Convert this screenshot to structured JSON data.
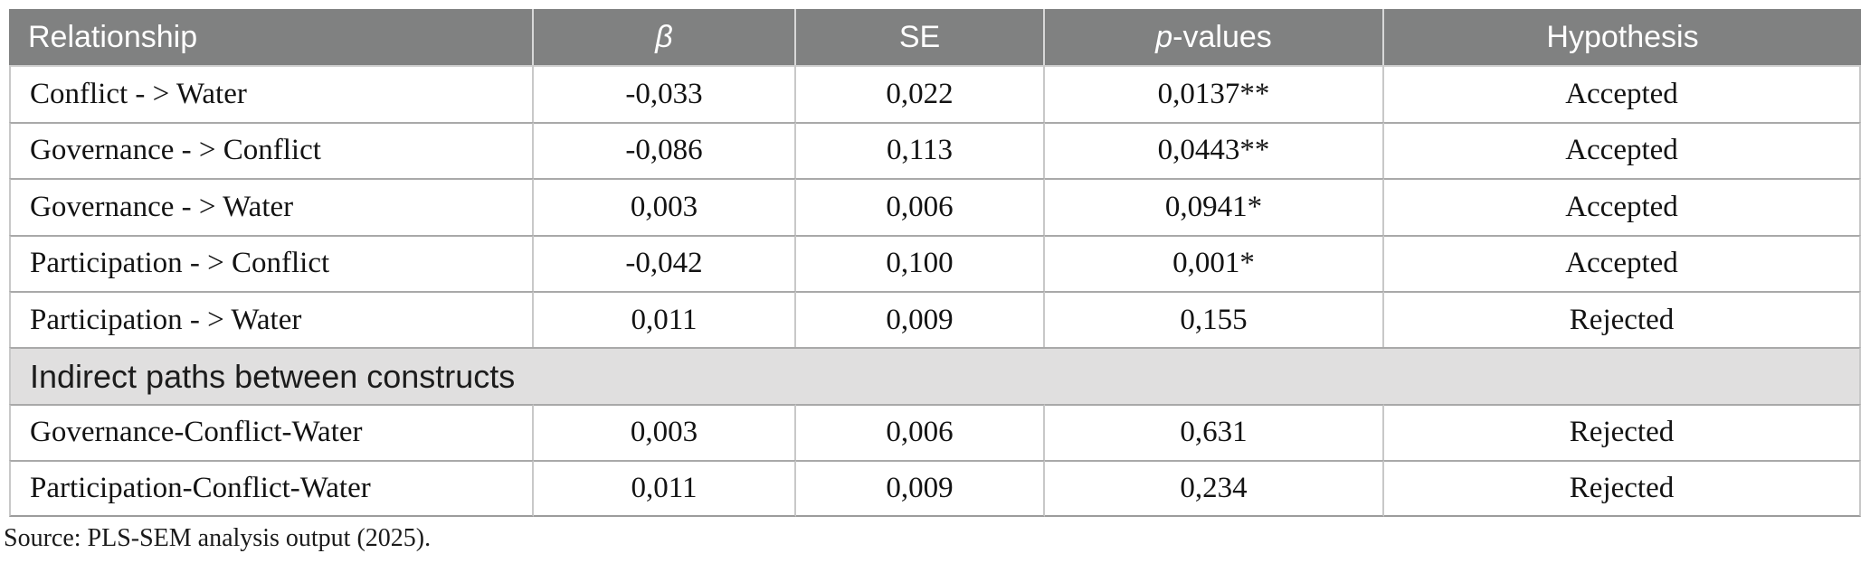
{
  "colors": {
    "header_bg": "#808181",
    "header_text": "#ffffff",
    "header_divider": "#d8d8d8",
    "section_bg": "#e0dfdf",
    "section_text": "#1c1c1c",
    "body_text": "#131313",
    "border_h": "#a9a9a9",
    "border_v": "#c8c8c8",
    "border_b": "#9b9b9b",
    "under_header": "#cfcfcf"
  },
  "table": {
    "columns": {
      "relationship": "Relationship",
      "beta": "β",
      "se": "SE",
      "p": "p-values",
      "hypothesis": "Hypothesis"
    },
    "direct_rows": [
      {
        "relationship": "Conflict - > Water",
        "beta": "-0,033",
        "se": "0,022",
        "p": "0,0137**",
        "hypothesis": "Accepted"
      },
      {
        "relationship": "Governance - > Conflict",
        "beta": "-0,086",
        "se": "0,113",
        "p": "0,0443**",
        "hypothesis": "Accepted"
      },
      {
        "relationship": "Governance - > Water",
        "beta": "0,003",
        "se": "0,006",
        "p": "0,0941*",
        "hypothesis": "Accepted"
      },
      {
        "relationship": "Participation - > Conflict",
        "beta": "-0,042",
        "se": "0,100",
        "p": "0,001*",
        "hypothesis": "Accepted"
      },
      {
        "relationship": "Participation - > Water",
        "beta": "0,011",
        "se": "0,009",
        "p": "0,155",
        "hypothesis": "Rejected"
      }
    ],
    "section_label": "Indirect paths between constructs",
    "indirect_rows": [
      {
        "relationship": "Governance-Conflict-Water",
        "beta": "0,003",
        "se": "0,006",
        "p": "0,631",
        "hypothesis": "Rejected"
      },
      {
        "relationship": "Participation-Conflict-Water",
        "beta": "0,011",
        "se": "0,009",
        "p": "0,234",
        "hypothesis": "Rejected"
      }
    ]
  },
  "source_note": "Source: PLS-SEM analysis output (2025)."
}
